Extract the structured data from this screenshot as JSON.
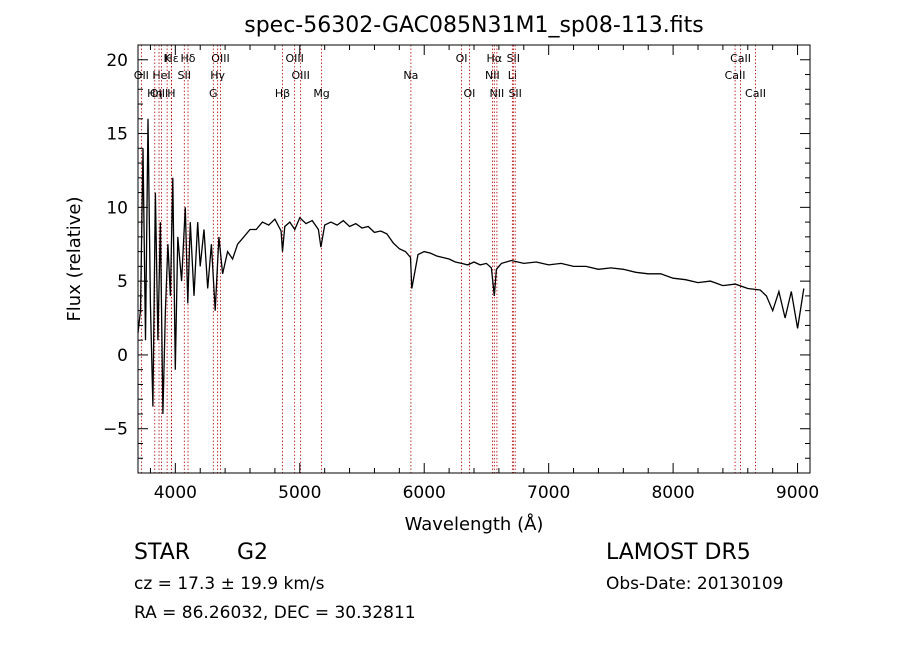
{
  "chart_data": {
    "type": "line",
    "title": "spec-56302-GAC085N31M1_sp08-113.fits",
    "xlabel": "Wavelength (Å)",
    "ylabel": "Flux (relative)",
    "xlim": [
      3700,
      9100
    ],
    "ylim": [
      -8,
      21
    ],
    "x_ticks": [
      4000,
      5000,
      6000,
      7000,
      8000,
      9000
    ],
    "y_ticks": [
      -5,
      0,
      5,
      10,
      15,
      20
    ],
    "grid": false,
    "line_color": "#000000",
    "marker_line_color": "#b00000",
    "series": [
      {
        "x": [
          3700,
          3720,
          3740,
          3760,
          3780,
          3800,
          3820,
          3840,
          3860,
          3880,
          3900,
          3920,
          3940,
          3960,
          3980,
          4000,
          4020,
          4050,
          4080,
          4100,
          4120,
          4150,
          4180,
          4200,
          4230,
          4260,
          4290,
          4320,
          4350,
          4380,
          4420,
          4460,
          4500,
          4550,
          4600,
          4650,
          4700,
          4750,
          4800,
          4850,
          4861,
          4880,
          4920,
          4960,
          5000,
          5050,
          5100,
          5150,
          5170,
          5200,
          5250,
          5300,
          5350,
          5400,
          5450,
          5500,
          5550,
          5600,
          5650,
          5700,
          5750,
          5800,
          5850,
          5890,
          5900,
          5950,
          6000,
          6050,
          6100,
          6150,
          6200,
          6250,
          6300,
          6350,
          6400,
          6450,
          6500,
          6540,
          6563,
          6580,
          6620,
          6700,
          6800,
          6900,
          7000,
          7100,
          7200,
          7300,
          7400,
          7500,
          7600,
          7700,
          7800,
          7900,
          8000,
          8100,
          8200,
          8300,
          8400,
          8500,
          8600,
          8700,
          8750,
          8800,
          8850,
          8900,
          8950,
          9000,
          9050
        ],
        "y": [
          1.5,
          3,
          14,
          1,
          16,
          3.5,
          -3.5,
          11,
          1,
          9,
          -4,
          3,
          7.5,
          4,
          12,
          -1,
          8,
          5,
          10,
          3.5,
          9,
          4,
          9,
          6,
          8.5,
          4.5,
          7.5,
          3,
          8,
          5.5,
          7,
          6.5,
          7.5,
          8,
          8.5,
          8.5,
          9,
          8.8,
          9.2,
          8.4,
          7,
          8.7,
          9,
          8.5,
          9.3,
          8.9,
          9.1,
          8.5,
          7.3,
          8.8,
          9,
          8.8,
          9.1,
          8.7,
          8.9,
          8.6,
          8.7,
          8.3,
          8.4,
          8.2,
          7.6,
          7.2,
          7,
          6.6,
          4.5,
          6.8,
          7,
          6.9,
          6.7,
          6.6,
          6.5,
          6.3,
          6.2,
          6.1,
          6.3,
          6.1,
          6.2,
          5.9,
          4.0,
          5.8,
          6.2,
          6.4,
          6.2,
          6.3,
          6.1,
          6.2,
          6.0,
          6.0,
          5.8,
          5.9,
          5.8,
          5.6,
          5.5,
          5.5,
          5.2,
          5.1,
          4.9,
          5.0,
          4.7,
          4.8,
          4.5,
          4.4,
          4.0,
          3.0,
          4.3,
          2.5,
          4.3,
          1.8,
          4.5
        ]
      }
    ],
    "line_markers": [
      {
        "label": "Hε",
        "x": 3970,
        "row": 1
      },
      {
        "label": "K",
        "x": 3934,
        "row": 1
      },
      {
        "label": "Hδ",
        "x": 4102,
        "row": 1
      },
      {
        "label": "OIII",
        "x": 4363,
        "row": 1
      },
      {
        "label": "OIII",
        "x": 4959,
        "row": 1
      },
      {
        "label": "OI",
        "x": 6300,
        "row": 1
      },
      {
        "label": "Hα",
        "x": 6563,
        "row": 1
      },
      {
        "label": "SII",
        "x": 6716,
        "row": 1
      },
      {
        "label": "CaII",
        "x": 8542,
        "row": 1
      },
      {
        "label": "OII",
        "x": 3727,
        "row": 2
      },
      {
        "label": "HeI",
        "x": 3889,
        "row": 2
      },
      {
        "label": "SII",
        "x": 4072,
        "row": 2
      },
      {
        "label": "Hγ",
        "x": 4340,
        "row": 2
      },
      {
        "label": "OIII",
        "x": 5007,
        "row": 2
      },
      {
        "label": "Na",
        "x": 5893,
        "row": 2
      },
      {
        "label": "NII",
        "x": 6548,
        "row": 2
      },
      {
        "label": "Li",
        "x": 6708,
        "row": 2
      },
      {
        "label": "CaII",
        "x": 8498,
        "row": 2
      },
      {
        "label": "OIII",
        "x": 3869,
        "row": 3
      },
      {
        "label": "Hη",
        "x": 3835,
        "row": 3
      },
      {
        "label": "H",
        "x": 3968,
        "row": 3
      },
      {
        "label": "G",
        "x": 4305,
        "row": 3
      },
      {
        "label": "Hβ",
        "x": 4861,
        "row": 3
      },
      {
        "label": "Mg",
        "x": 5175,
        "row": 3
      },
      {
        "label": "OI",
        "x": 6363,
        "row": 3
      },
      {
        "label": "NII",
        "x": 6584,
        "row": 3
      },
      {
        "label": "SII",
        "x": 6731,
        "row": 3
      },
      {
        "label": "CaII",
        "x": 8662,
        "row": 3
      }
    ]
  },
  "footer": {
    "object_class": "STAR",
    "subclass": "G2",
    "redshift": "cz = 17.3 ± 19.9 km/s",
    "coords": "RA =  86.26032, DEC =  30.32811",
    "survey": "LAMOST DR5",
    "obs_date": "Obs-Date: 20130109"
  }
}
